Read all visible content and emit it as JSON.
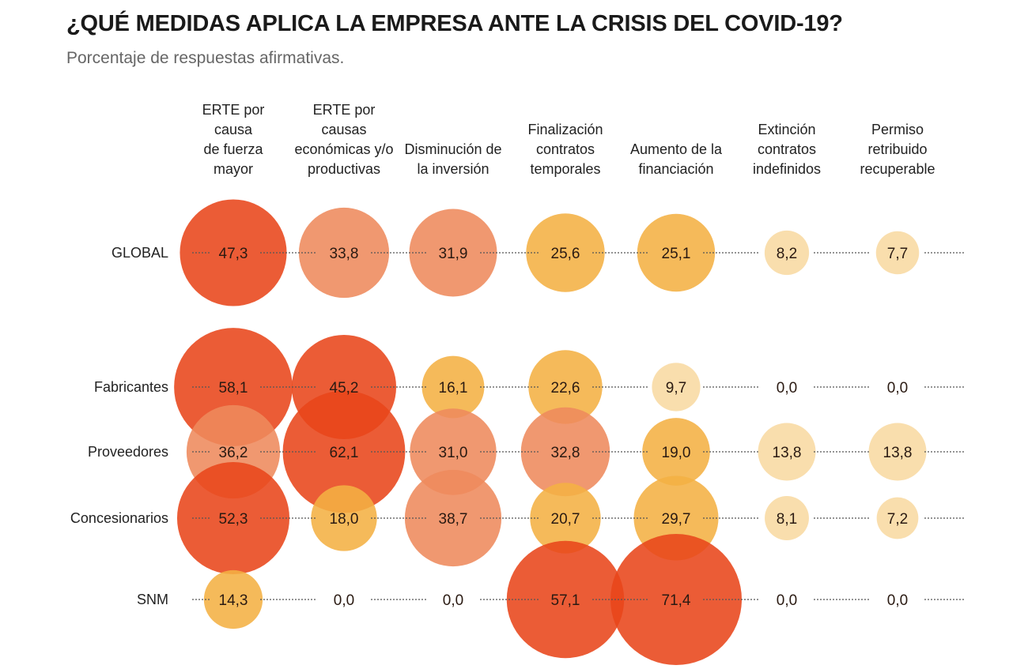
{
  "chart_data": {
    "type": "bubble-matrix",
    "title": "¿QUÉ MEDIDAS APLICA LA EMPRESA ANTE LA CRISIS DEL COVID-19?",
    "subtitle": "Porcentaje de respuestas afirmativas.",
    "columns": [
      [
        "ERTE por",
        "causa",
        "de fuerza",
        "mayor"
      ],
      [
        "ERTE por",
        "causas",
        "económicas y/o",
        "productivas"
      ],
      [
        "Disminución de",
        "la inversión"
      ],
      [
        "Finalización",
        "contratos",
        "temporales"
      ],
      [
        "Aumento de la",
        "financiación"
      ],
      [
        "Extinción",
        "contratos",
        "indefinidos"
      ],
      [
        "Permiso",
        "retribuido",
        "recuperable"
      ]
    ],
    "rows": [
      {
        "label": "GLOBAL",
        "values": [
          47.3,
          33.8,
          31.9,
          25.6,
          25.1,
          8.2,
          7.7
        ]
      },
      {
        "label": "Fabricantes",
        "values": [
          58.1,
          45.2,
          16.1,
          22.6,
          9.7,
          0.0,
          0.0
        ]
      },
      {
        "label": "Proveedores",
        "values": [
          36.2,
          62.1,
          31.0,
          32.8,
          19.0,
          13.8,
          13.8
        ]
      },
      {
        "label": "Concesionarios",
        "values": [
          52.3,
          18.0,
          38.7,
          20.7,
          29.7,
          8.1,
          7.2
        ]
      },
      {
        "label": "SNM",
        "values": [
          14.3,
          0.0,
          0.0,
          57.1,
          71.4,
          0.0,
          0.0
        ]
      }
    ],
    "color_scale": [
      {
        "min": 40,
        "color": "#e8461a"
      },
      {
        "min": 30,
        "color": "#ee8a5c"
      },
      {
        "min": 14,
        "color": "#f4b143"
      },
      {
        "min": 0,
        "color": "#f8d9a2"
      }
    ],
    "decimal_separator": ","
  }
}
